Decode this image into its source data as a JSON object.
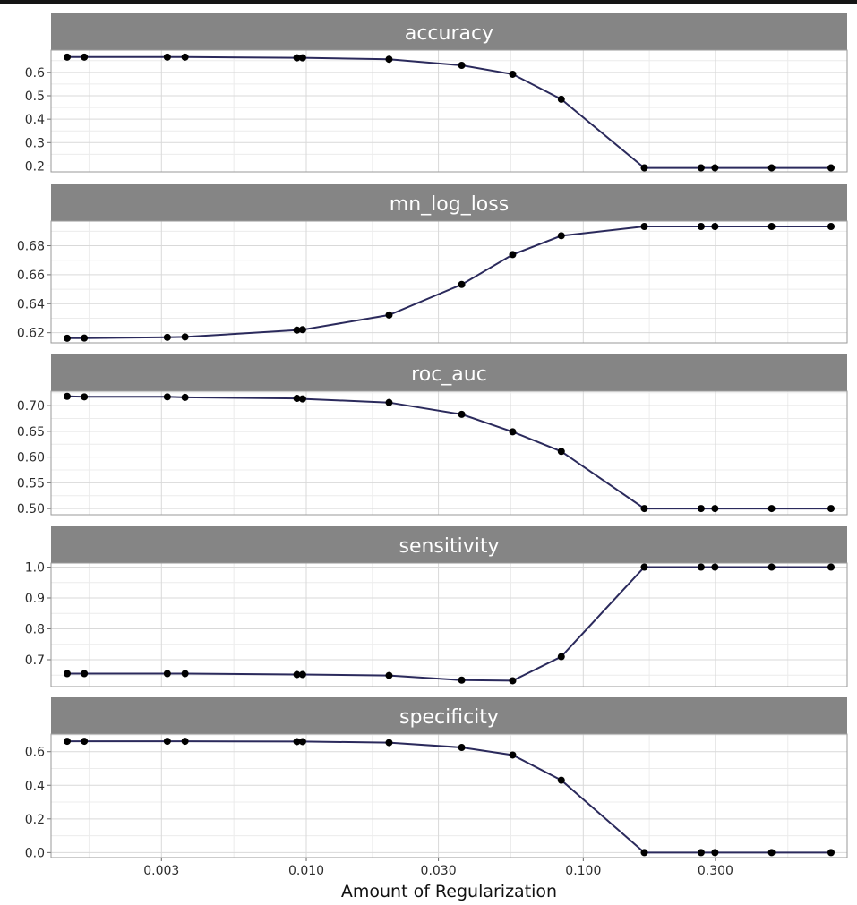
{
  "chart_data": {
    "type": "line",
    "xlabel": "Amount of Regularization",
    "x_scale": "log10",
    "x_tick_labels": [
      "0.003",
      "0.010",
      "0.030",
      "0.100",
      "0.300"
    ],
    "x": [
      0.00137,
      0.00158,
      0.00315,
      0.00365,
      0.00925,
      0.0097,
      0.0199,
      0.0364,
      0.0556,
      0.0833,
      0.1661,
      0.2663,
      0.2988,
      0.4785,
      0.7843
    ],
    "grid": true,
    "series_color": "#2b2a5c",
    "facets": [
      {
        "title": "accuracy",
        "y_ticks": [
          0.2,
          0.3,
          0.4,
          0.5,
          0.6
        ],
        "y_tick_labels": [
          "0.2",
          "0.3",
          "0.4",
          "0.5",
          "0.6"
        ],
        "ylim": [
          0.175,
          0.695
        ],
        "values": [
          0.665,
          0.665,
          0.665,
          0.665,
          0.662,
          0.662,
          0.656,
          0.63,
          0.592,
          0.485,
          0.192,
          0.192,
          0.192,
          0.192,
          0.192
        ]
      },
      {
        "title": "mn_log_loss",
        "y_ticks": [
          0.62,
          0.64,
          0.66,
          0.68
        ],
        "y_tick_labels": [
          "0.62",
          "0.64",
          "0.66",
          "0.68"
        ],
        "ylim": [
          0.613,
          0.697
        ],
        "values": [
          0.6162,
          0.6163,
          0.6168,
          0.6171,
          0.6218,
          0.6221,
          0.6322,
          0.6533,
          0.6739,
          0.6869,
          0.6933,
          0.6933,
          0.6933,
          0.6933,
          0.6933
        ]
      },
      {
        "title": "roc_auc",
        "y_ticks": [
          0.5,
          0.55,
          0.6,
          0.65,
          0.7
        ],
        "y_tick_labels": [
          "0.50",
          "0.55",
          "0.60",
          "0.65",
          "0.70"
        ],
        "ylim": [
          0.488,
          0.728
        ],
        "values": [
          0.718,
          0.717,
          0.717,
          0.716,
          0.714,
          0.713,
          0.706,
          0.683,
          0.649,
          0.611,
          0.5,
          0.5,
          0.5,
          0.5,
          0.5
        ]
      },
      {
        "title": "sensitivity",
        "y_ticks": [
          0.7,
          0.8,
          0.9,
          1.0
        ],
        "y_tick_labels": [
          "0.7",
          "0.8",
          "0.9",
          "1.0"
        ],
        "ylim": [
          0.613,
          1.013
        ],
        "values": [
          0.655,
          0.655,
          0.655,
          0.655,
          0.652,
          0.652,
          0.649,
          0.634,
          0.632,
          0.71,
          1.0,
          1.0,
          1.0,
          1.0,
          1.0
        ]
      },
      {
        "title": "specificity",
        "y_ticks": [
          0.0,
          0.2,
          0.4,
          0.6
        ],
        "y_tick_labels": [
          "0.0",
          "0.2",
          "0.4",
          "0.6"
        ],
        "ylim": [
          -0.03,
          0.705
        ],
        "values": [
          0.662,
          0.662,
          0.662,
          0.662,
          0.66,
          0.66,
          0.654,
          0.625,
          0.58,
          0.43,
          0.0,
          0.0,
          0.0,
          0.0,
          0.0
        ]
      }
    ]
  }
}
